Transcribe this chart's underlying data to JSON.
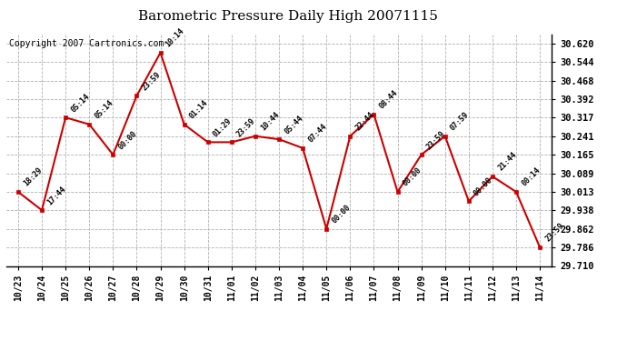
{
  "title": "Barometric Pressure Daily High 20071115",
  "copyright": "Copyright 2007 Cartronics.com",
  "x_labels": [
    "10/23",
    "10/24",
    "10/25",
    "10/26",
    "10/27",
    "10/28",
    "10/29",
    "10/30",
    "10/31",
    "11/01",
    "11/02",
    "11/03",
    "11/04",
    "11/05",
    "11/06",
    "11/07",
    "11/08",
    "11/09",
    "11/10",
    "11/11",
    "11/12",
    "11/13",
    "11/14"
  ],
  "y_values": [
    30.013,
    29.938,
    30.317,
    30.289,
    30.165,
    30.406,
    30.582,
    30.289,
    30.216,
    30.216,
    30.241,
    30.228,
    30.192,
    29.862,
    30.241,
    30.33,
    30.013,
    30.165,
    30.241,
    29.975,
    30.076,
    30.013,
    29.786
  ],
  "point_labels": [
    "18:29",
    "17:44",
    "05:14",
    "05:14",
    "00:00",
    "23:59",
    "10:14",
    "01:14",
    "01:29",
    "23:59",
    "10:44",
    "05:44",
    "07:44",
    "00:00",
    "22:44",
    "08:44",
    "00:00",
    "23:59",
    "07:59",
    "00:00",
    "21:44",
    "00:14",
    "23:59"
  ],
  "ylim_min": 29.71,
  "ylim_max": 30.658,
  "yticks": [
    30.62,
    30.544,
    30.468,
    30.392,
    30.317,
    30.241,
    30.165,
    30.089,
    30.013,
    29.938,
    29.862,
    29.786,
    29.71
  ],
  "line_color": "#cc0000",
  "marker_color": "#cc0000",
  "bg_color": "#ffffff",
  "grid_color": "#b0b0b0",
  "title_fontsize": 11,
  "annotation_fontsize": 6,
  "copyright_fontsize": 7
}
